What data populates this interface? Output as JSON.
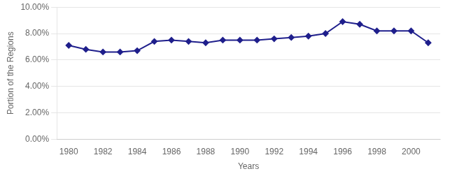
{
  "chart_data": {
    "type": "line",
    "x": [
      1980,
      1981,
      1982,
      1983,
      1984,
      1985,
      1986,
      1987,
      1988,
      1989,
      1990,
      1991,
      1992,
      1993,
      1994,
      1995,
      1996,
      1997,
      1998,
      1999,
      2000,
      2001
    ],
    "values": [
      0.071,
      0.068,
      0.066,
      0.066,
      0.067,
      0.074,
      0.075,
      0.074,
      0.073,
      0.075,
      0.075,
      0.075,
      0.076,
      0.077,
      0.078,
      0.08,
      0.089,
      0.087,
      0.082,
      0.082,
      0.082,
      0.073
    ],
    "color": "#1F1F8C",
    "marker": "diamond",
    "xlabel": "Years",
    "ylabel": "Portion of the Regions",
    "xlim": [
      1979.3,
      2001.7
    ],
    "xticks": [
      1980,
      1982,
      1984,
      1986,
      1988,
      1990,
      1992,
      1994,
      1996,
      1998,
      2000
    ],
    "ylim": [
      0.0,
      0.1
    ],
    "yticks": [
      {
        "value": 0.0,
        "label": "0.00%"
      },
      {
        "value": 0.02,
        "label": "2.00%"
      },
      {
        "value": 0.04,
        "label": "4.00%"
      },
      {
        "value": 0.06,
        "label": "6.00%"
      },
      {
        "value": 0.08,
        "label": "8.00%"
      },
      {
        "value": 0.1,
        "label": "10.00%"
      }
    ],
    "grid": "y"
  }
}
